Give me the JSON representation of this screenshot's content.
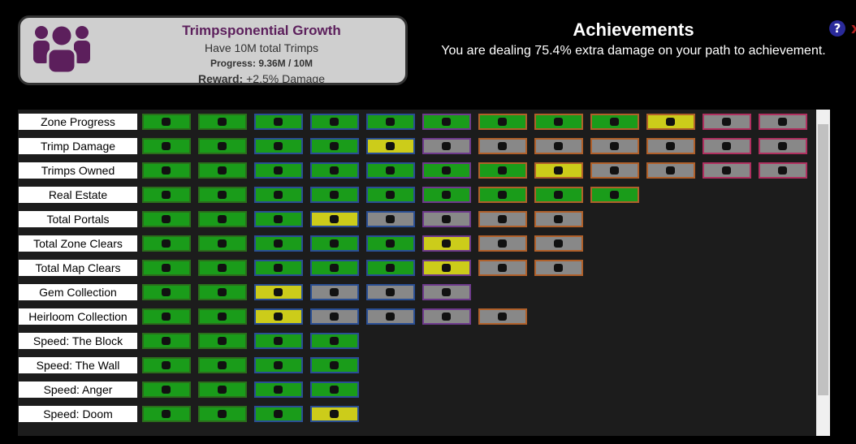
{
  "achievement_card": {
    "title": "Trimpsponential Growth",
    "description": "Have 10M total Trimps",
    "progress_label": "Progress:",
    "progress_value": "9.36M / 10M",
    "reward_label": "Reward:",
    "reward_value": "+2.5% Damage"
  },
  "header": {
    "title": "Achievements",
    "subtitle": "You are dealing 75.4% extra damage on your path to achievement."
  },
  "grid": {
    "tier_borders": [
      "#2b6e1c",
      "#2b6e1c",
      "#2a4f94",
      "#2a4f94",
      "#2a4f94",
      "#6e3a8c",
      "#b0602a",
      "#b0602a",
      "#b0602a",
      "#b0602a",
      "#b03060",
      "#b03060"
    ],
    "rows": [
      {
        "label": "Zone Progress",
        "tiles": [
          "#1a9c1a",
          "#1a9c1a",
          "#1a9c1a",
          "#1a9c1a",
          "#1a9c1a",
          "#1a9c1a",
          "#1a9c1a",
          "#1a9c1a",
          "#1a9c1a",
          "#cccc1a",
          "#888888",
          "#888888"
        ]
      },
      {
        "label": "Trimp Damage",
        "tiles": [
          "#1a9c1a",
          "#1a9c1a",
          "#1a9c1a",
          "#1a9c1a",
          "#cccc1a",
          "#888888",
          "#888888",
          "#888888",
          "#888888",
          "#888888",
          "#888888",
          "#888888"
        ]
      },
      {
        "label": "Trimps Owned",
        "tiles": [
          "#1a9c1a",
          "#1a9c1a",
          "#1a9c1a",
          "#1a9c1a",
          "#1a9c1a",
          "#1a9c1a",
          "#1a9c1a",
          "#cccc1a",
          "#888888",
          "#888888",
          "#888888",
          "#888888"
        ]
      },
      {
        "label": "Real Estate",
        "tiles": [
          "#1a9c1a",
          "#1a9c1a",
          "#1a9c1a",
          "#1a9c1a",
          "#1a9c1a",
          "#1a9c1a",
          "#1a9c1a",
          "#1a9c1a",
          "#1a9c1a"
        ]
      },
      {
        "label": "Total Portals",
        "tiles": [
          "#1a9c1a",
          "#1a9c1a",
          "#1a9c1a",
          "#cccc1a",
          "#888888",
          "#888888",
          "#888888",
          "#888888"
        ]
      },
      {
        "label": "Total Zone Clears",
        "tiles": [
          "#1a9c1a",
          "#1a9c1a",
          "#1a9c1a",
          "#1a9c1a",
          "#1a9c1a",
          "#cccc1a",
          "#888888",
          "#888888"
        ]
      },
      {
        "label": "Total Map Clears",
        "tiles": [
          "#1a9c1a",
          "#1a9c1a",
          "#1a9c1a",
          "#1a9c1a",
          "#1a9c1a",
          "#cccc1a",
          "#888888",
          "#888888"
        ]
      },
      {
        "label": "Gem Collection",
        "tiles": [
          "#1a9c1a",
          "#1a9c1a",
          "#cccc1a",
          "#888888",
          "#888888",
          "#888888"
        ]
      },
      {
        "label": "Heirloom Collection",
        "tiles": [
          "#1a9c1a",
          "#1a9c1a",
          "#cccc1a",
          "#888888",
          "#888888",
          "#888888",
          "#888888"
        ]
      },
      {
        "label": "Speed: The Block",
        "tiles": [
          "#1a9c1a",
          "#1a9c1a",
          "#1a9c1a",
          "#1a9c1a"
        ]
      },
      {
        "label": "Speed: The Wall",
        "tiles": [
          "#1a9c1a",
          "#1a9c1a",
          "#1a9c1a",
          "#1a9c1a"
        ]
      },
      {
        "label": "Speed: Anger",
        "tiles": [
          "#1a9c1a",
          "#1a9c1a",
          "#1a9c1a",
          "#1a9c1a"
        ]
      },
      {
        "label": "Speed: Doom",
        "tiles": [
          "#1a9c1a",
          "#1a9c1a",
          "#1a9c1a",
          "#cccc1a"
        ]
      }
    ]
  }
}
